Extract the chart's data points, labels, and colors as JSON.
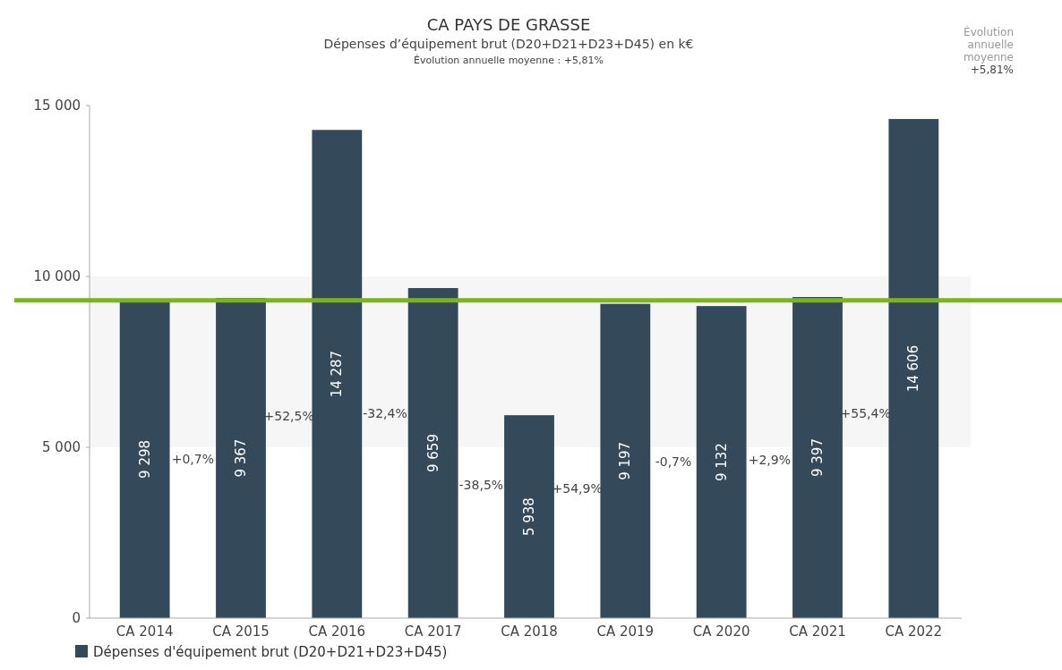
{
  "chart_data": {
    "type": "bar",
    "title": "CA PAYS DE GRASSE",
    "subtitle": "Dépenses d’équipement brut (D20+D21+D23+D45) en k€\nÉvolution annuelle moyenne : +5,81%",
    "categories": [
      "CA 2014",
      "CA 2015",
      "CA 2016",
      "CA 2017",
      "CA 2018",
      "CA 2019",
      "CA 2020",
      "CA 2021",
      "CA 2022"
    ],
    "series": [
      {
        "name": "Dépenses d'équipement brut (D20+D21+D23+D45)",
        "color": "#34495a",
        "values": [
          9298,
          9367,
          14287,
          9659,
          5938,
          9197,
          9132,
          9397,
          14606
        ]
      }
    ],
    "ylim": [
      0,
      15000
    ],
    "yticks": [
      0,
      {
        "value": 5000,
        "label": "5 000"
      },
      {
        "value": 10000,
        "label": "10 000"
      },
      {
        "value": 15000,
        "label": "15 000"
      }
    ],
    "data_labels": true,
    "legend": "bottom",
    "bands": [
      {
        "axis": "y",
        "from": 5000,
        "to": 10000,
        "color": "#f6f6f6"
      }
    ],
    "ref_lines": [
      {
        "axis": "y",
        "value": 9300,
        "color": "#7ab51d"
      }
    ],
    "annotations": [
      "+0,7%",
      "+52,5%",
      "-32,4%",
      "-38,5%",
      "+54,9%",
      "-0,7%",
      "+2,9%",
      "+55,4%",
      "Évolution annuelle moyenne +5,81%"
    ]
  }
}
